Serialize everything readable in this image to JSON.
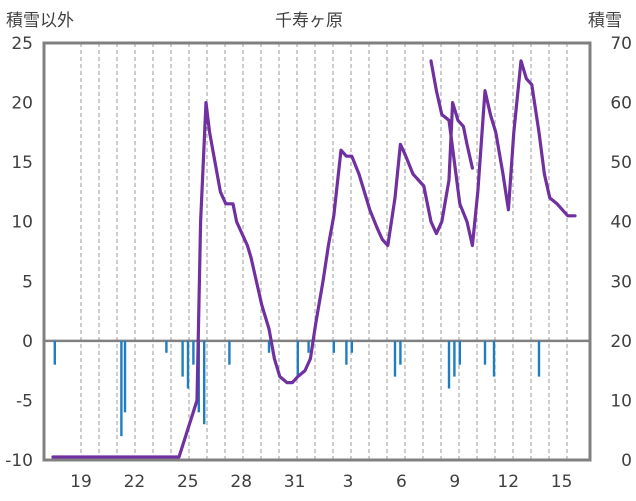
{
  "chart_data": {
    "type": "line",
    "title": "千寿ヶ原",
    "left_axis_label": "積雪以外",
    "right_axis_label": "積雪",
    "left_axis": {
      "ylim": [
        -10,
        25
      ],
      "ticks": [
        -10,
        -5,
        0,
        5,
        10,
        15,
        20,
        25
      ]
    },
    "right_axis": {
      "ylim": [
        0,
        70
      ],
      "ticks": [
        0,
        10,
        20,
        30,
        40,
        50,
        60,
        70
      ]
    },
    "x_ticks": [
      "19",
      "22",
      "25",
      "28",
      "31",
      "3",
      "6",
      "9",
      "12",
      "15"
    ],
    "grid": "vertical dashed",
    "colors": {
      "line": "#7030a0",
      "bars": "#1f7ec2",
      "zero": "#808080",
      "frame": "#808080"
    },
    "series": [
      {
        "axis": "right",
        "style": "line",
        "x_day_index": [
          0,
          1,
          2,
          3,
          4,
          5,
          6,
          7,
          8,
          8.2,
          8.5,
          8.7,
          9,
          9.3,
          9.6,
          10,
          10.2,
          10.5,
          10.8,
          11,
          11.3,
          11.6,
          12,
          12.3,
          12.6,
          13,
          13.3,
          13.6,
          14,
          14.3,
          14.6,
          15,
          15.3,
          15.6,
          16,
          16.3,
          16.6,
          17,
          17.3,
          17.6,
          18,
          18.3,
          18.6,
          19,
          19.3,
          19.6,
          20,
          20.3,
          20.6,
          21,
          21.3,
          21.6,
          22,
          22.2,
          22.5,
          22.8,
          23,
          23.3
        ],
        "values": [
          0.5,
          0.5,
          0.5,
          0.5,
          0.5,
          0.5,
          0.5,
          0.5,
          10,
          40,
          60,
          55,
          50,
          45,
          43,
          43,
          40,
          38,
          36,
          34,
          30,
          26,
          22,
          17,
          14,
          13,
          13,
          14,
          15,
          17,
          23,
          30,
          36,
          41,
          52,
          51,
          51,
          48,
          45,
          42,
          39,
          37,
          36,
          44,
          53,
          51,
          48,
          47,
          46,
          40,
          38,
          40,
          47,
          60,
          57,
          56,
          53,
          49
        ]
      },
      {
        "axis": "right",
        "style": "line",
        "x_day_index": [
          21,
          21.3,
          21.6,
          22,
          22.3,
          22.6,
          23,
          23.3,
          23.6,
          24,
          24.3,
          24.6,
          25,
          25.3,
          25.6,
          26,
          26.3,
          26.6,
          27,
          27.3,
          27.6,
          28,
          28.3,
          28.6,
          29
        ],
        "values": [
          67,
          62,
          58,
          57,
          50,
          43,
          40,
          36,
          45,
          62,
          58,
          55,
          48,
          42,
          55,
          67,
          64,
          63,
          55,
          48,
          44,
          43,
          42,
          41,
          41
        ]
      },
      {
        "axis": "left",
        "style": "bar",
        "x_day_index": [
          0.1,
          3.8,
          4.0,
          6.3,
          7.2,
          7.5,
          7.8,
          8.1,
          8.4,
          9.8,
          12.0,
          13.6,
          14.2,
          15.6,
          16.3,
          16.6,
          19.0,
          19.3,
          22.0,
          22.3,
          22.6,
          24.0,
          24.5,
          27.0
        ],
        "values": [
          -2,
          -8,
          -6,
          -1,
          -3,
          -4,
          -2,
          -6,
          -7,
          -2,
          -1,
          -3,
          -1,
          -1,
          -2,
          -1,
          -3,
          -2,
          -4,
          -3,
          -2,
          -2,
          -3,
          -3
        ]
      }
    ]
  }
}
